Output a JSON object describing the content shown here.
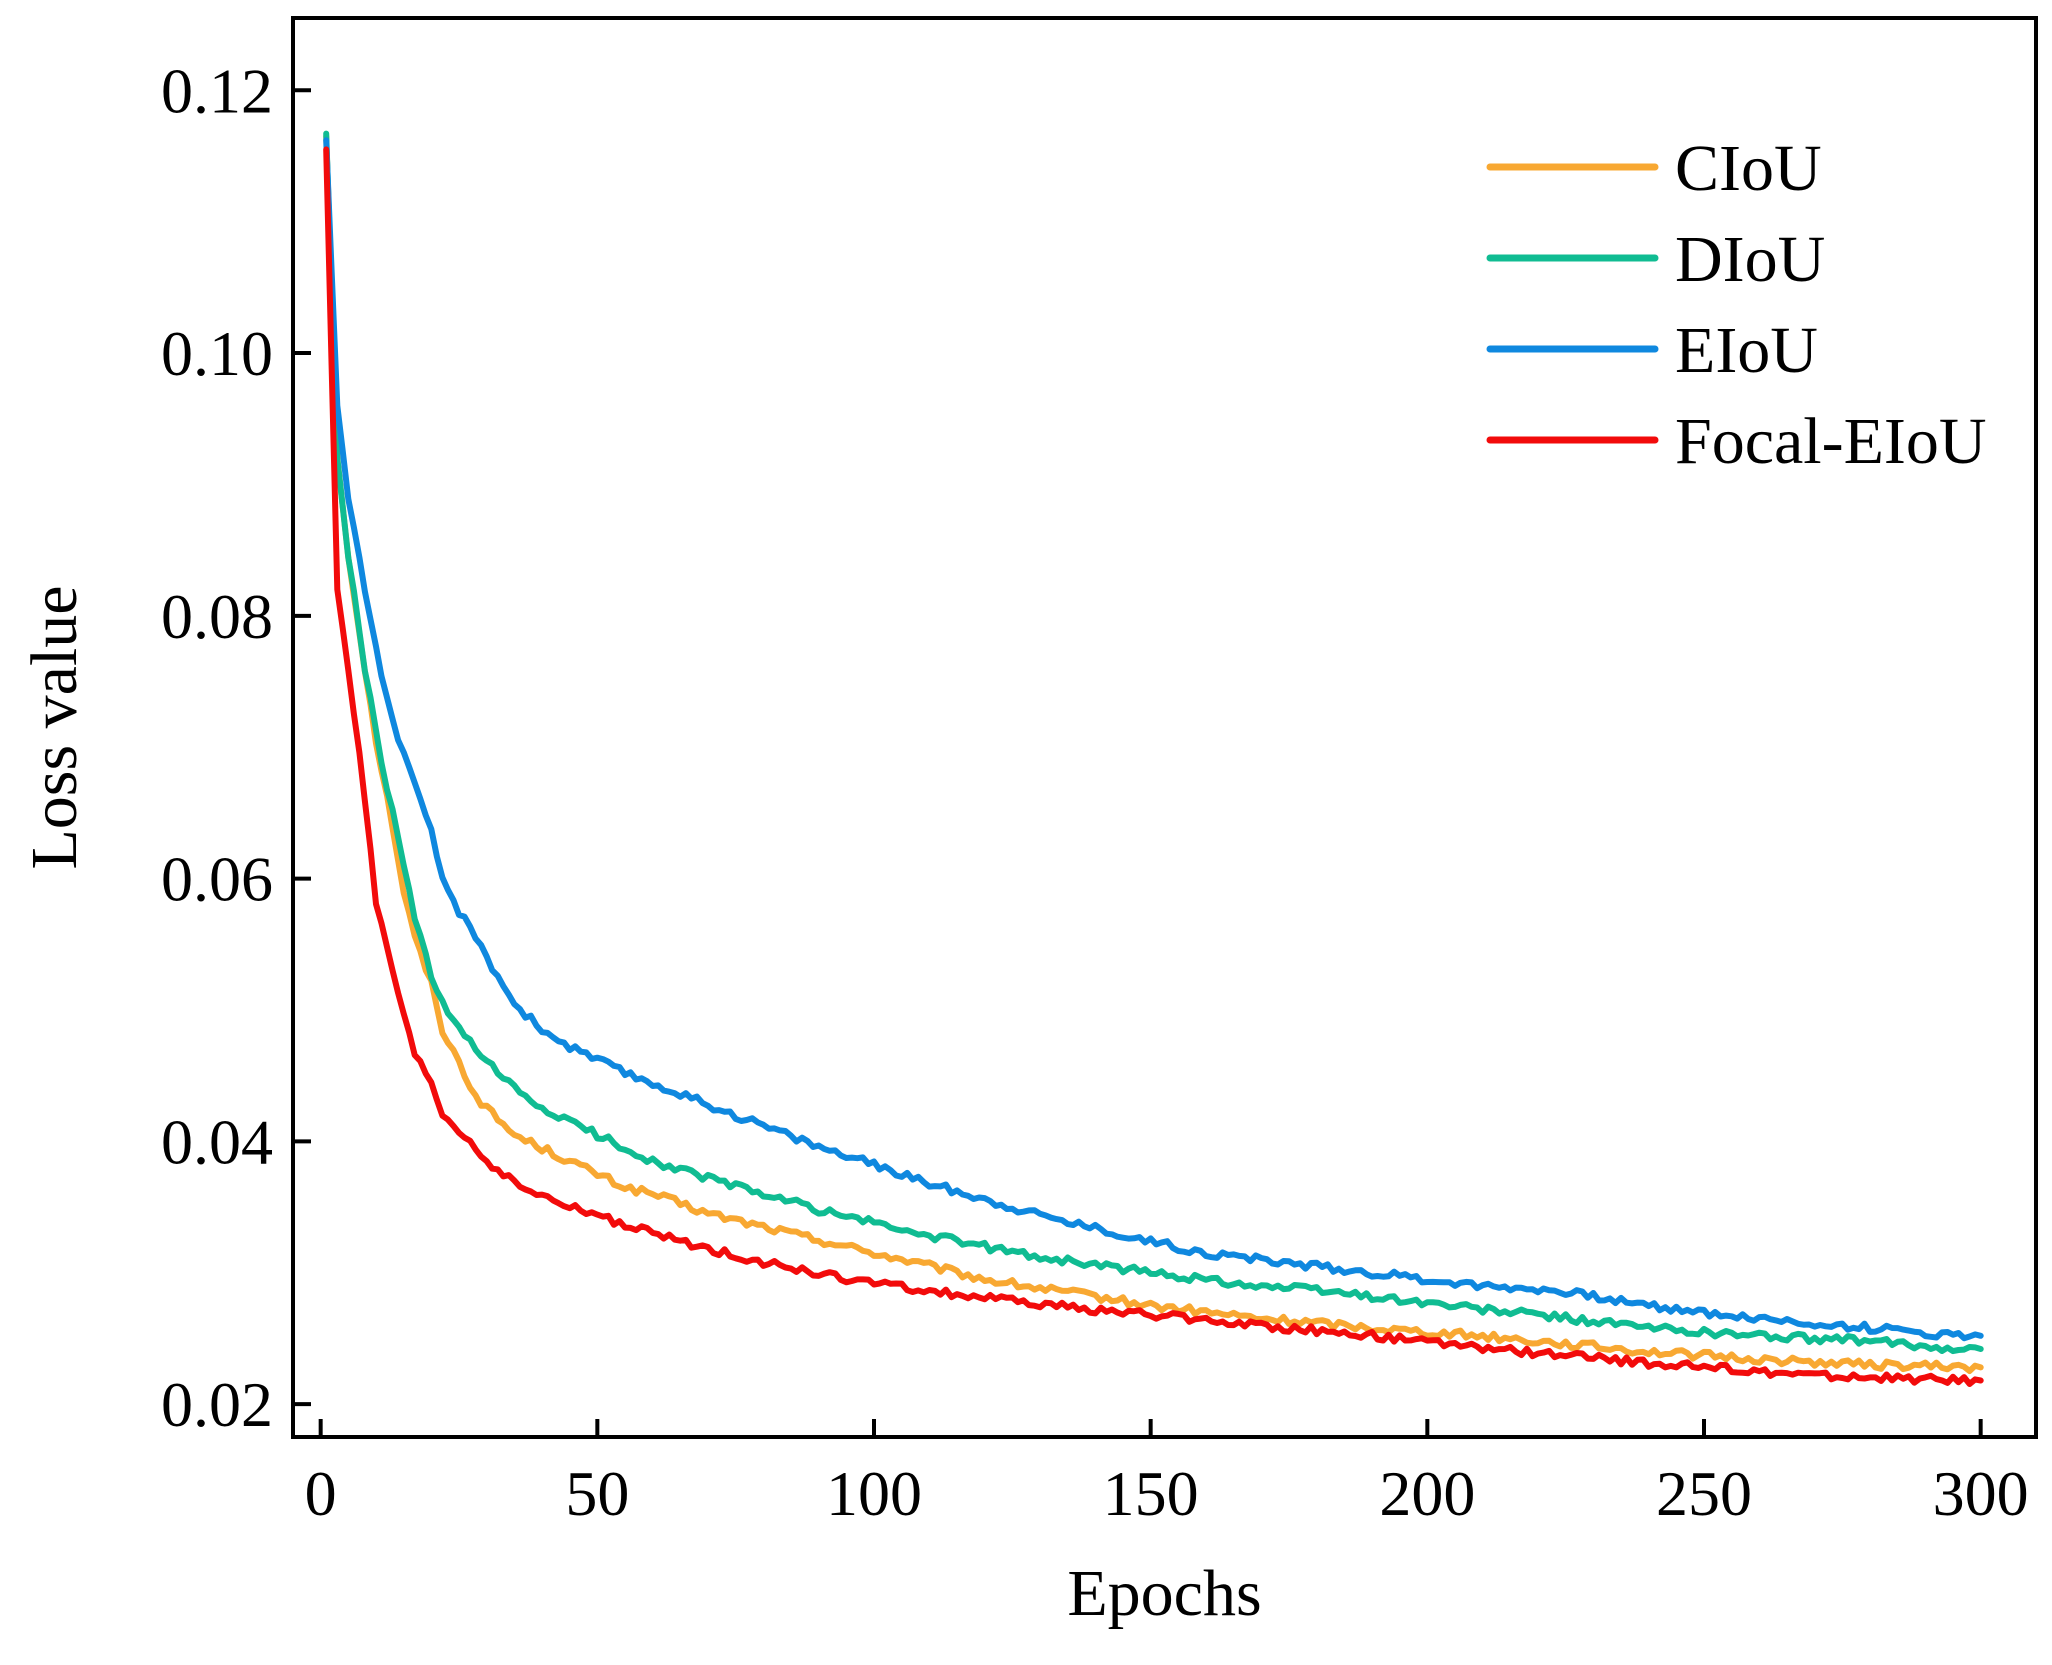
{
  "chart_data": {
    "type": "line",
    "title": "",
    "xlabel": "Epochs",
    "ylabel": "Loss value",
    "xlim": [
      -5,
      310
    ],
    "ylim": [
      0.0175,
      0.1255
    ],
    "xticks": [
      0,
      50,
      100,
      150,
      200,
      250,
      300
    ],
    "yticks": [
      0.02,
      0.04,
      0.06,
      0.08,
      0.1,
      0.12
    ],
    "xtick_labels": [
      "0",
      "50",
      "100",
      "150",
      "200",
      "250",
      "300"
    ],
    "ytick_labels": [
      "0.02",
      "0.04",
      "0.06",
      "0.08",
      "0.10",
      "0.12"
    ],
    "grid": false,
    "legend_position": "top-right",
    "series": [
      {
        "name": "CIoU",
        "color": "#F8A832",
        "x": [
          1,
          3,
          5,
          8,
          10,
          13,
          15,
          17,
          20,
          22,
          25,
          28,
          30,
          35,
          40,
          45,
          50,
          55,
          60,
          70,
          80,
          90,
          100,
          110,
          120,
          130,
          140,
          150,
          160,
          170,
          180,
          190,
          200,
          210,
          220,
          230,
          240,
          250,
          260,
          270,
          280,
          290,
          300
        ],
        "values": [
          0.1165,
          0.092,
          0.0845,
          0.076,
          0.0705,
          0.064,
          0.059,
          0.0555,
          0.052,
          0.0485,
          0.046,
          0.0435,
          0.0425,
          0.0405,
          0.0395,
          0.0385,
          0.0375,
          0.0365,
          0.036,
          0.0345,
          0.0335,
          0.0325,
          0.0315,
          0.0305,
          0.0295,
          0.0288,
          0.0282,
          0.0275,
          0.027,
          0.0265,
          0.0262,
          0.0258,
          0.0255,
          0.0252,
          0.0248,
          0.0244,
          0.024,
          0.0237,
          0.0234,
          0.0232,
          0.023,
          0.0229,
          0.0228
        ]
      },
      {
        "name": "DIoU",
        "color": "#10BC92",
        "x": [
          1,
          3,
          5,
          8,
          10,
          13,
          15,
          17,
          20,
          22,
          25,
          28,
          30,
          35,
          40,
          45,
          50,
          55,
          60,
          70,
          80,
          90,
          100,
          110,
          120,
          130,
          140,
          150,
          160,
          170,
          180,
          190,
          200,
          210,
          220,
          230,
          240,
          250,
          260,
          270,
          280,
          290,
          300
        ],
        "values": [
          0.1167,
          0.092,
          0.0845,
          0.076,
          0.071,
          0.065,
          0.061,
          0.057,
          0.0525,
          0.0505,
          0.0485,
          0.047,
          0.046,
          0.044,
          0.0425,
          0.0415,
          0.0405,
          0.0395,
          0.0385,
          0.0372,
          0.036,
          0.0348,
          0.0338,
          0.0328,
          0.032,
          0.0312,
          0.0306,
          0.03,
          0.0295,
          0.029,
          0.0287,
          0.0282,
          0.0277,
          0.0272,
          0.0268,
          0.0263,
          0.0258,
          0.0255,
          0.0252,
          0.025,
          0.0248,
          0.0244,
          0.0242
        ]
      },
      {
        "name": "EIoU",
        "color": "#0F88DF",
        "x": [
          1,
          3,
          5,
          8,
          10,
          13,
          15,
          17,
          20,
          22,
          25,
          28,
          30,
          35,
          40,
          45,
          50,
          55,
          60,
          70,
          80,
          90,
          100,
          110,
          120,
          130,
          140,
          150,
          160,
          170,
          180,
          190,
          200,
          210,
          220,
          230,
          240,
          250,
          260,
          270,
          280,
          290,
          300
        ],
        "values": [
          0.1162,
          0.096,
          0.089,
          0.082,
          0.0775,
          0.072,
          0.0695,
          0.067,
          0.0635,
          0.06,
          0.0575,
          0.0555,
          0.054,
          0.0505,
          0.0485,
          0.0472,
          0.0462,
          0.0452,
          0.0444,
          0.0428,
          0.0412,
          0.0396,
          0.0382,
          0.0368,
          0.0356,
          0.0344,
          0.0334,
          0.0324,
          0.0315,
          0.031,
          0.0305,
          0.03,
          0.0295,
          0.029,
          0.0288,
          0.0282,
          0.0275,
          0.027,
          0.0265,
          0.0261,
          0.0258,
          0.0254,
          0.0252
        ]
      },
      {
        "name": "Focal-EIoU",
        "color": "#F20B0B",
        "x": [
          1,
          3,
          5,
          8,
          10,
          13,
          15,
          17,
          20,
          22,
          25,
          28,
          30,
          35,
          40,
          45,
          50,
          55,
          60,
          70,
          80,
          90,
          100,
          110,
          120,
          130,
          140,
          150,
          160,
          170,
          180,
          190,
          200,
          210,
          220,
          230,
          240,
          250,
          260,
          270,
          280,
          290,
          300
        ],
        "values": [
          0.1155,
          0.082,
          0.076,
          0.066,
          0.058,
          0.053,
          0.0495,
          0.0465,
          0.0445,
          0.042,
          0.0408,
          0.0395,
          0.0385,
          0.0368,
          0.0358,
          0.035,
          0.0344,
          0.0336,
          0.033,
          0.0318,
          0.0308,
          0.0299,
          0.0292,
          0.0286,
          0.0281,
          0.0276,
          0.0272,
          0.0268,
          0.0264,
          0.026,
          0.0256,
          0.0252,
          0.0247,
          0.0243,
          0.0239,
          0.0235,
          0.0231,
          0.0228,
          0.0225,
          0.0222,
          0.022,
          0.0219,
          0.0218
        ]
      }
    ]
  }
}
